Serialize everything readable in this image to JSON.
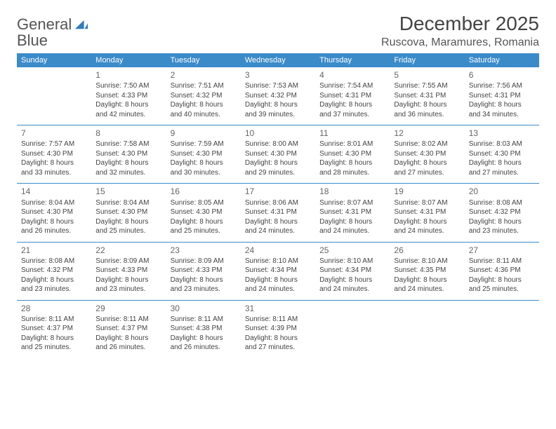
{
  "header": {
    "logo_general": "General",
    "logo_blue": "Blue",
    "title": "December 2025",
    "location": "Ruscova, Maramures, Romania"
  },
  "colors": {
    "brand_blue": "#3b8bc9",
    "text": "#444444",
    "bg": "#ffffff"
  },
  "dayNames": [
    "Sunday",
    "Monday",
    "Tuesday",
    "Wednesday",
    "Thursday",
    "Friday",
    "Saturday"
  ],
  "weeks": [
    [
      null,
      {
        "n": "1",
        "sr": "Sunrise: 7:50 AM",
        "ss": "Sunset: 4:33 PM",
        "d1": "Daylight: 8 hours",
        "d2": "and 42 minutes."
      },
      {
        "n": "2",
        "sr": "Sunrise: 7:51 AM",
        "ss": "Sunset: 4:32 PM",
        "d1": "Daylight: 8 hours",
        "d2": "and 40 minutes."
      },
      {
        "n": "3",
        "sr": "Sunrise: 7:53 AM",
        "ss": "Sunset: 4:32 PM",
        "d1": "Daylight: 8 hours",
        "d2": "and 39 minutes."
      },
      {
        "n": "4",
        "sr": "Sunrise: 7:54 AM",
        "ss": "Sunset: 4:31 PM",
        "d1": "Daylight: 8 hours",
        "d2": "and 37 minutes."
      },
      {
        "n": "5",
        "sr": "Sunrise: 7:55 AM",
        "ss": "Sunset: 4:31 PM",
        "d1": "Daylight: 8 hours",
        "d2": "and 36 minutes."
      },
      {
        "n": "6",
        "sr": "Sunrise: 7:56 AM",
        "ss": "Sunset: 4:31 PM",
        "d1": "Daylight: 8 hours",
        "d2": "and 34 minutes."
      }
    ],
    [
      {
        "n": "7",
        "sr": "Sunrise: 7:57 AM",
        "ss": "Sunset: 4:30 PM",
        "d1": "Daylight: 8 hours",
        "d2": "and 33 minutes."
      },
      {
        "n": "8",
        "sr": "Sunrise: 7:58 AM",
        "ss": "Sunset: 4:30 PM",
        "d1": "Daylight: 8 hours",
        "d2": "and 32 minutes."
      },
      {
        "n": "9",
        "sr": "Sunrise: 7:59 AM",
        "ss": "Sunset: 4:30 PM",
        "d1": "Daylight: 8 hours",
        "d2": "and 30 minutes."
      },
      {
        "n": "10",
        "sr": "Sunrise: 8:00 AM",
        "ss": "Sunset: 4:30 PM",
        "d1": "Daylight: 8 hours",
        "d2": "and 29 minutes."
      },
      {
        "n": "11",
        "sr": "Sunrise: 8:01 AM",
        "ss": "Sunset: 4:30 PM",
        "d1": "Daylight: 8 hours",
        "d2": "and 28 minutes."
      },
      {
        "n": "12",
        "sr": "Sunrise: 8:02 AM",
        "ss": "Sunset: 4:30 PM",
        "d1": "Daylight: 8 hours",
        "d2": "and 27 minutes."
      },
      {
        "n": "13",
        "sr": "Sunrise: 8:03 AM",
        "ss": "Sunset: 4:30 PM",
        "d1": "Daylight: 8 hours",
        "d2": "and 27 minutes."
      }
    ],
    [
      {
        "n": "14",
        "sr": "Sunrise: 8:04 AM",
        "ss": "Sunset: 4:30 PM",
        "d1": "Daylight: 8 hours",
        "d2": "and 26 minutes."
      },
      {
        "n": "15",
        "sr": "Sunrise: 8:04 AM",
        "ss": "Sunset: 4:30 PM",
        "d1": "Daylight: 8 hours",
        "d2": "and 25 minutes."
      },
      {
        "n": "16",
        "sr": "Sunrise: 8:05 AM",
        "ss": "Sunset: 4:30 PM",
        "d1": "Daylight: 8 hours",
        "d2": "and 25 minutes."
      },
      {
        "n": "17",
        "sr": "Sunrise: 8:06 AM",
        "ss": "Sunset: 4:31 PM",
        "d1": "Daylight: 8 hours",
        "d2": "and 24 minutes."
      },
      {
        "n": "18",
        "sr": "Sunrise: 8:07 AM",
        "ss": "Sunset: 4:31 PM",
        "d1": "Daylight: 8 hours",
        "d2": "and 24 minutes."
      },
      {
        "n": "19",
        "sr": "Sunrise: 8:07 AM",
        "ss": "Sunset: 4:31 PM",
        "d1": "Daylight: 8 hours",
        "d2": "and 24 minutes."
      },
      {
        "n": "20",
        "sr": "Sunrise: 8:08 AM",
        "ss": "Sunset: 4:32 PM",
        "d1": "Daylight: 8 hours",
        "d2": "and 23 minutes."
      }
    ],
    [
      {
        "n": "21",
        "sr": "Sunrise: 8:08 AM",
        "ss": "Sunset: 4:32 PM",
        "d1": "Daylight: 8 hours",
        "d2": "and 23 minutes."
      },
      {
        "n": "22",
        "sr": "Sunrise: 8:09 AM",
        "ss": "Sunset: 4:33 PM",
        "d1": "Daylight: 8 hours",
        "d2": "and 23 minutes."
      },
      {
        "n": "23",
        "sr": "Sunrise: 8:09 AM",
        "ss": "Sunset: 4:33 PM",
        "d1": "Daylight: 8 hours",
        "d2": "and 23 minutes."
      },
      {
        "n": "24",
        "sr": "Sunrise: 8:10 AM",
        "ss": "Sunset: 4:34 PM",
        "d1": "Daylight: 8 hours",
        "d2": "and 24 minutes."
      },
      {
        "n": "25",
        "sr": "Sunrise: 8:10 AM",
        "ss": "Sunset: 4:34 PM",
        "d1": "Daylight: 8 hours",
        "d2": "and 24 minutes."
      },
      {
        "n": "26",
        "sr": "Sunrise: 8:10 AM",
        "ss": "Sunset: 4:35 PM",
        "d1": "Daylight: 8 hours",
        "d2": "and 24 minutes."
      },
      {
        "n": "27",
        "sr": "Sunrise: 8:11 AM",
        "ss": "Sunset: 4:36 PM",
        "d1": "Daylight: 8 hours",
        "d2": "and 25 minutes."
      }
    ],
    [
      {
        "n": "28",
        "sr": "Sunrise: 8:11 AM",
        "ss": "Sunset: 4:37 PM",
        "d1": "Daylight: 8 hours",
        "d2": "and 25 minutes."
      },
      {
        "n": "29",
        "sr": "Sunrise: 8:11 AM",
        "ss": "Sunset: 4:37 PM",
        "d1": "Daylight: 8 hours",
        "d2": "and 26 minutes."
      },
      {
        "n": "30",
        "sr": "Sunrise: 8:11 AM",
        "ss": "Sunset: 4:38 PM",
        "d1": "Daylight: 8 hours",
        "d2": "and 26 minutes."
      },
      {
        "n": "31",
        "sr": "Sunrise: 8:11 AM",
        "ss": "Sunset: 4:39 PM",
        "d1": "Daylight: 8 hours",
        "d2": "and 27 minutes."
      },
      null,
      null,
      null
    ]
  ]
}
